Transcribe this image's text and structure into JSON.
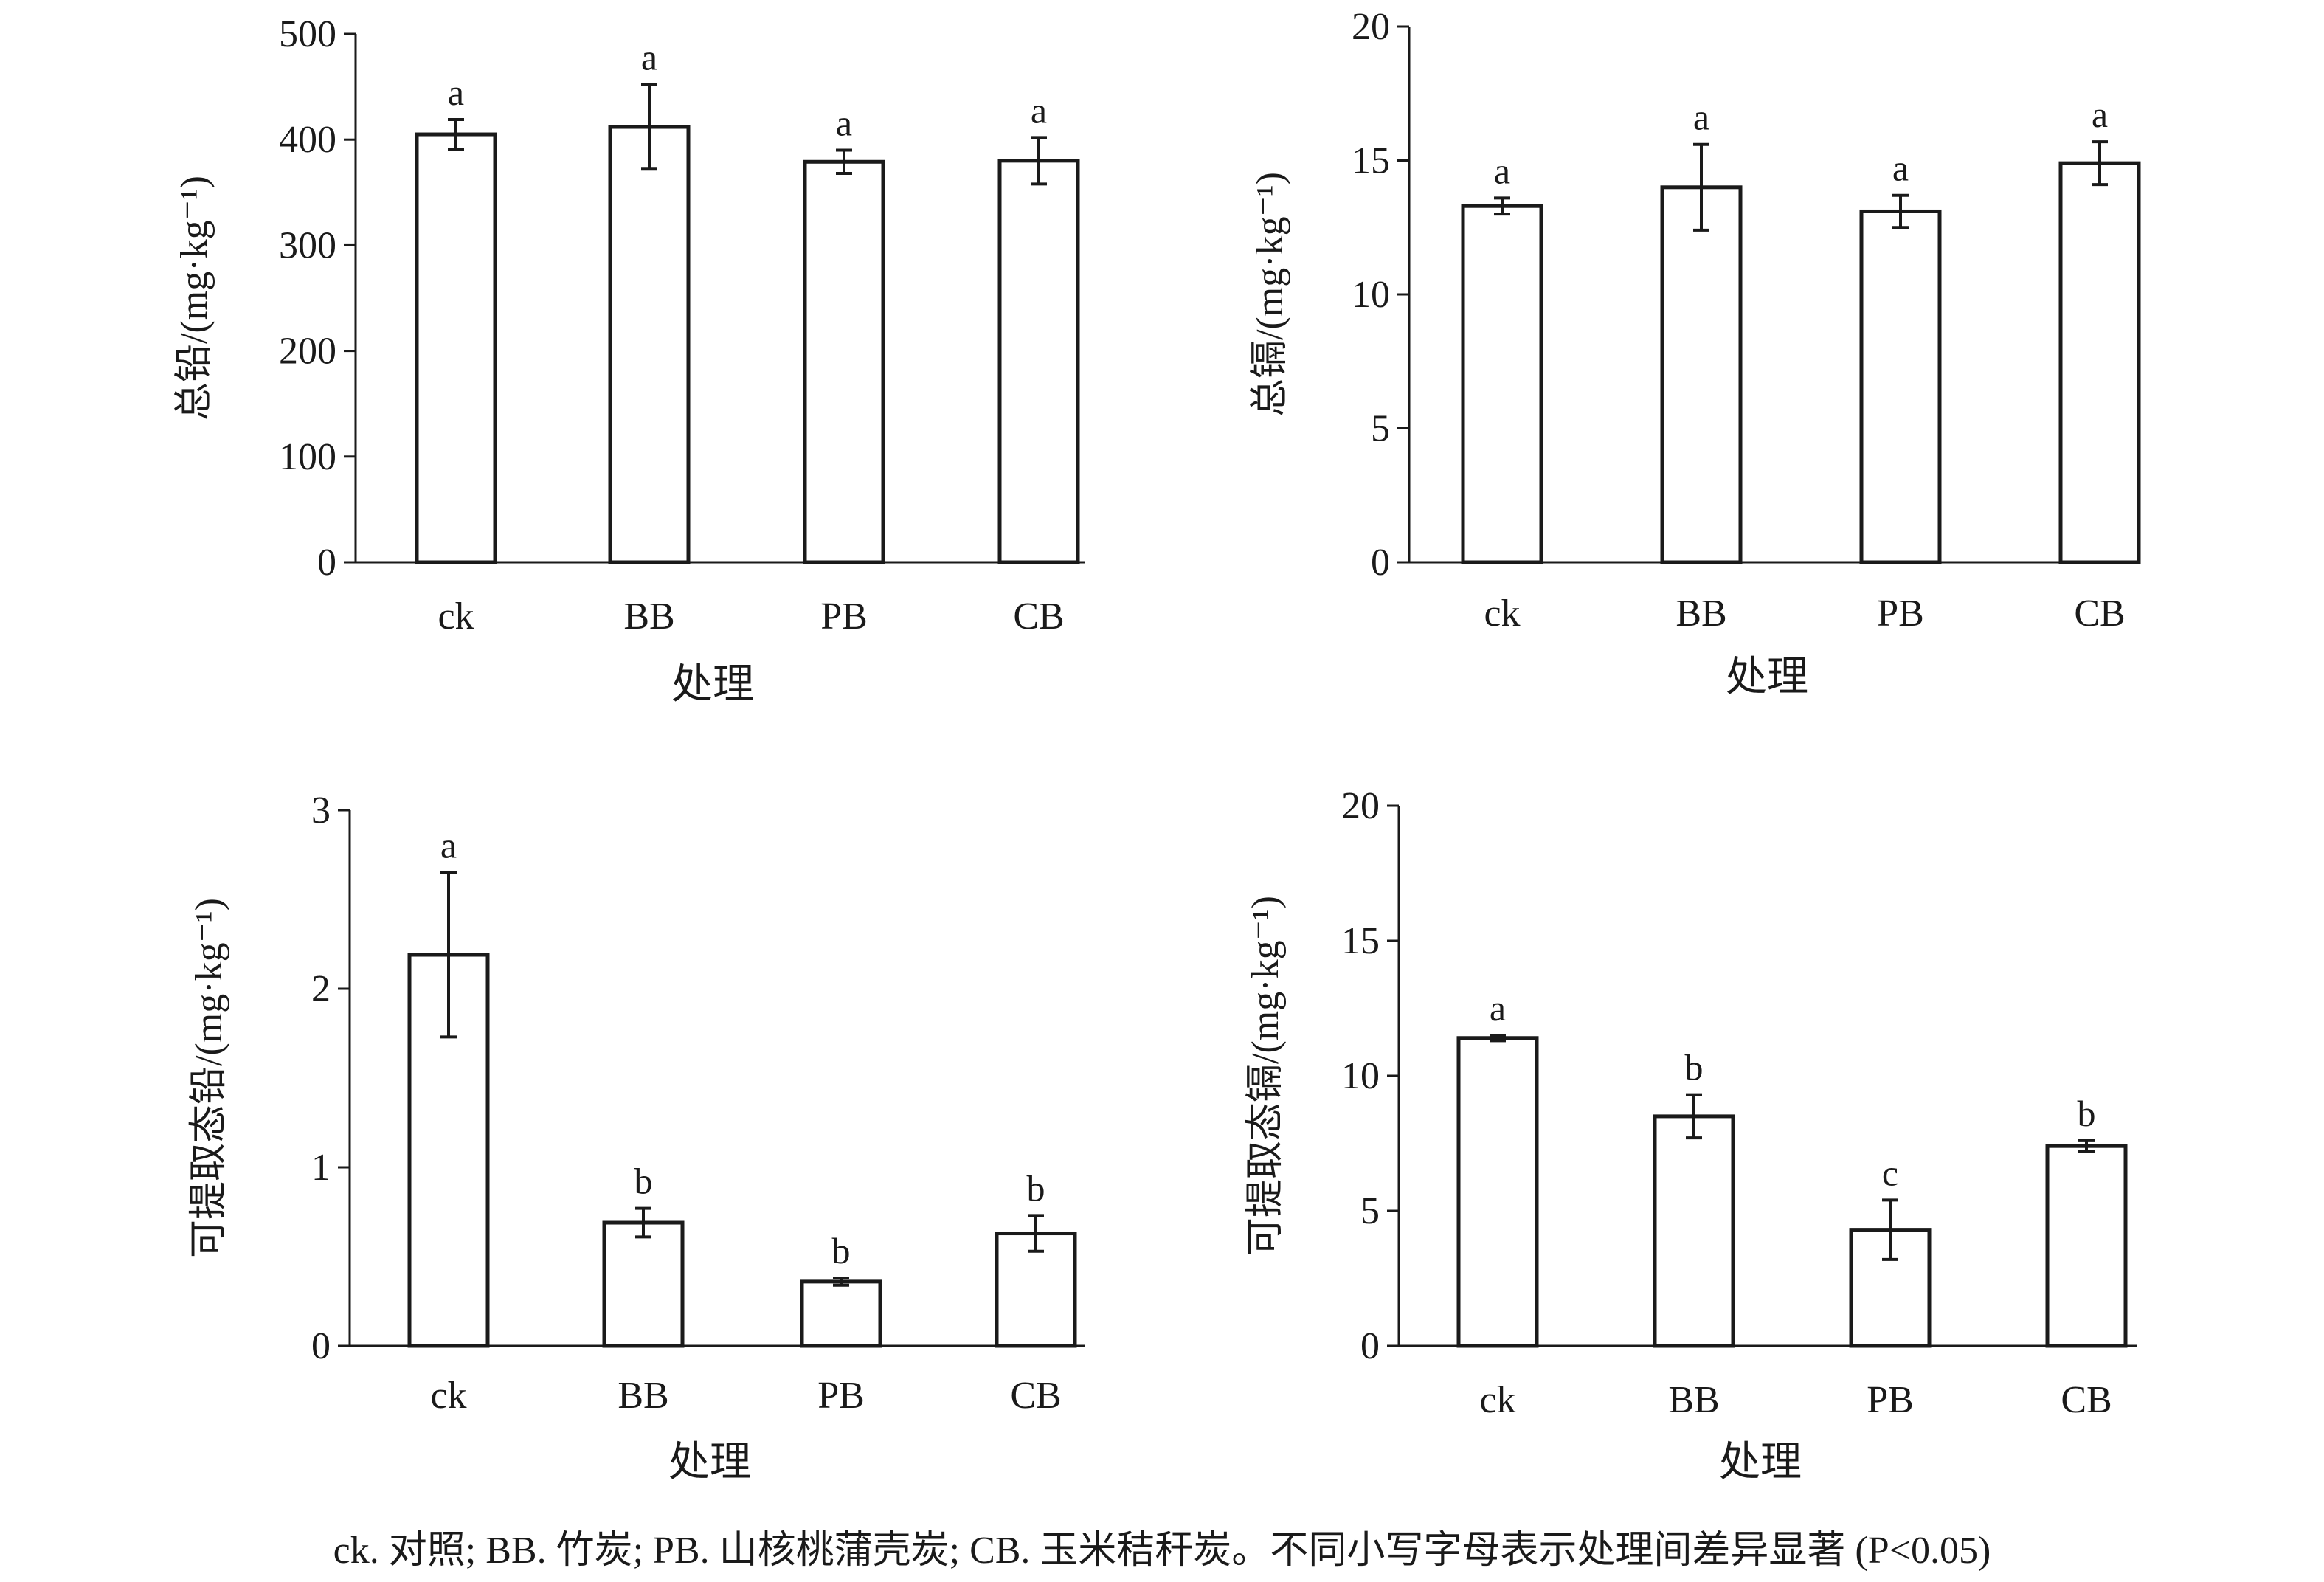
{
  "chart_data": [
    {
      "type": "bar",
      "ylabel": "总铅/(mg·kg⁻¹)",
      "xlabel": "处理",
      "ylim": [
        0,
        500
      ],
      "yticks": [
        "0",
        "100",
        "200",
        "300",
        "400",
        "500"
      ],
      "categories": [
        "ck",
        "BB",
        "PB",
        "CB"
      ],
      "values": [
        405,
        412,
        379,
        380
      ],
      "errors": [
        14,
        40,
        11,
        22
      ],
      "letters": [
        "a",
        "a",
        "a",
        "a"
      ]
    },
    {
      "type": "bar",
      "ylabel": "总镉/(mg·kg⁻¹)",
      "xlabel": "处理",
      "ylim": [
        0,
        20
      ],
      "yticks": [
        "0",
        "5",
        "10",
        "15",
        "20"
      ],
      "categories": [
        "ck",
        "BB",
        "PB",
        "CB"
      ],
      "values": [
        13.3,
        14.0,
        13.1,
        14.9
      ],
      "errors": [
        0.3,
        1.6,
        0.6,
        0.8
      ],
      "letters": [
        "a",
        "a",
        "a",
        "a"
      ]
    },
    {
      "type": "bar",
      "ylabel": "可提取态铅/(mg·kg⁻¹)",
      "xlabel": "处理",
      "ylim": [
        0,
        3
      ],
      "yticks": [
        "0",
        "1",
        "2",
        "3"
      ],
      "categories": [
        "ck",
        "BB",
        "PB",
        "CB"
      ],
      "values": [
        2.19,
        0.69,
        0.36,
        0.63
      ],
      "errors": [
        0.46,
        0.08,
        0.02,
        0.1
      ],
      "letters": [
        "a",
        "b",
        "b",
        "b"
      ]
    },
    {
      "type": "bar",
      "ylabel": "可提取态镉/(mg·kg⁻¹)",
      "xlabel": "处理",
      "ylim": [
        0,
        20
      ],
      "yticks": [
        "0",
        "5",
        "10",
        "15",
        "20"
      ],
      "categories": [
        "ck",
        "BB",
        "PB",
        "CB"
      ],
      "values": [
        11.4,
        8.5,
        4.3,
        7.4
      ],
      "errors": [
        0.1,
        0.8,
        1.1,
        0.2
      ],
      "letters": [
        "a",
        "b",
        "c",
        "b"
      ]
    }
  ],
  "caption": "ck. 对照; BB. 竹炭; PB. 山核桃蒲壳炭; CB. 玉米秸秆炭。不同小写字母表示处理间差异显著 (P<0.05)"
}
